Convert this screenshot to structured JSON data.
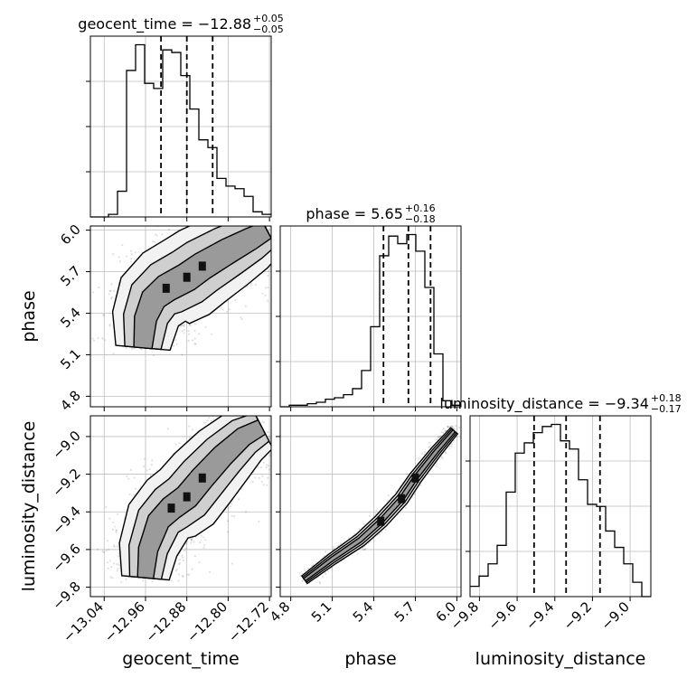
{
  "chart_data": {
    "type": "corner",
    "parameters": [
      "geocent_time",
      "phase",
      "luminosity_distance"
    ],
    "axis_labels": {
      "geocent_time": "geocent_time",
      "phase": "phase",
      "luminosity_distance": "luminosity_distance"
    },
    "titles": [
      {
        "param": "geocent_time",
        "text": "geocent_time = −12.88",
        "sup": "+0.05",
        "sub": "−0.05"
      },
      {
        "param": "phase",
        "text": "phase = 5.65",
        "sup": "+0.16",
        "sub": "−0.18"
      },
      {
        "param": "luminosity_distance",
        "text": "luminosity_distance = −9.34",
        "sup": "+0.18",
        "sub": "−0.17"
      }
    ],
    "ranges": {
      "geocent_time": [
        -13.0667,
        -12.7167
      ],
      "phase": [
        4.724,
        6.03
      ],
      "luminosity_distance": [
        -9.85,
        -8.89
      ]
    },
    "ticks": {
      "geocent_time": [
        {
          "v": -13.04,
          "l": "−13.04"
        },
        {
          "v": -12.96,
          "l": "−12.96"
        },
        {
          "v": -12.88,
          "l": "−12.88"
        },
        {
          "v": -12.8,
          "l": "−12.80"
        },
        {
          "v": -12.72,
          "l": "−12.72"
        }
      ],
      "phase": [
        {
          "v": 4.8,
          "l": "4.8"
        },
        {
          "v": 5.1,
          "l": "5.1"
        },
        {
          "v": 5.4,
          "l": "5.4"
        },
        {
          "v": 5.7,
          "l": "5.7"
        },
        {
          "v": 6.0,
          "l": "6.0"
        }
      ],
      "luminosity_distance": [
        {
          "v": -9.8,
          "l": "−9.8"
        },
        {
          "v": -9.6,
          "l": "−9.6"
        },
        {
          "v": -9.4,
          "l": "−9.4"
        },
        {
          "v": -9.2,
          "l": "−9.2"
        },
        {
          "v": -9.0,
          "l": "−9.0"
        }
      ]
    },
    "quantiles": {
      "geocent_time": [
        -12.93,
        -12.88,
        -12.83
      ],
      "phase": [
        5.47,
        5.65,
        5.81
      ],
      "luminosity_distance": [
        -9.51,
        -9.34,
        -9.16
      ]
    },
    "histograms": {
      "geocent_time": {
        "start": -13.0667,
        "step": 0.0175,
        "counts": [
          0,
          0,
          1,
          10,
          57,
          67,
          52,
          50,
          65,
          64,
          55,
          42,
          30,
          27,
          15,
          12,
          11,
          8,
          2,
          1
        ]
      },
      "phase": {
        "start": 4.724,
        "step": 0.0653,
        "counts": [
          0,
          1,
          1,
          2,
          3,
          5,
          6,
          8,
          12,
          24,
          53,
          100,
          113,
          108,
          114,
          103,
          79,
          35,
          4,
          1
        ]
      },
      "luminosity_distance": {
        "start": -9.85,
        "step": 0.048,
        "counts": [
          5,
          10,
          16,
          25,
          51,
          70,
          75,
          80,
          83,
          84,
          76,
          72,
          57,
          45,
          44,
          32,
          24,
          16,
          7,
          0
        ]
      }
    },
    "panels_2d": [
      {
        "x": "geocent_time",
        "y": "phase",
        "ridge": [
          [
            -12.965,
            5.15
          ],
          [
            -12.96,
            5.36
          ],
          [
            -12.945,
            5.5
          ],
          [
            -12.92,
            5.58
          ],
          [
            -12.88,
            5.66
          ],
          [
            -12.85,
            5.74
          ],
          [
            -12.8,
            5.85
          ],
          [
            -12.755,
            5.94
          ],
          [
            -12.725,
            6.0
          ]
        ],
        "width": 0.08
      },
      {
        "x": "geocent_time",
        "y": "luminosity_distance",
        "ridge": [
          [
            -12.96,
            -9.75
          ],
          [
            -12.955,
            -9.6
          ],
          [
            -12.935,
            -9.45
          ],
          [
            -12.91,
            -9.38
          ],
          [
            -12.88,
            -9.32
          ],
          [
            -12.85,
            -9.22
          ],
          [
            -12.81,
            -9.1
          ],
          [
            -12.77,
            -9.0
          ],
          [
            -12.735,
            -8.95
          ]
        ],
        "width": 0.07
      },
      {
        "x": "phase",
        "y": "luminosity_distance",
        "ridge": [
          [
            4.9,
            -9.76
          ],
          [
            5.1,
            -9.65
          ],
          [
            5.3,
            -9.55
          ],
          [
            5.45,
            -9.45
          ],
          [
            5.6,
            -9.33
          ],
          [
            5.7,
            -9.22
          ],
          [
            5.85,
            -9.08
          ],
          [
            5.98,
            -8.97
          ]
        ],
        "width": 0.05
      }
    ]
  }
}
